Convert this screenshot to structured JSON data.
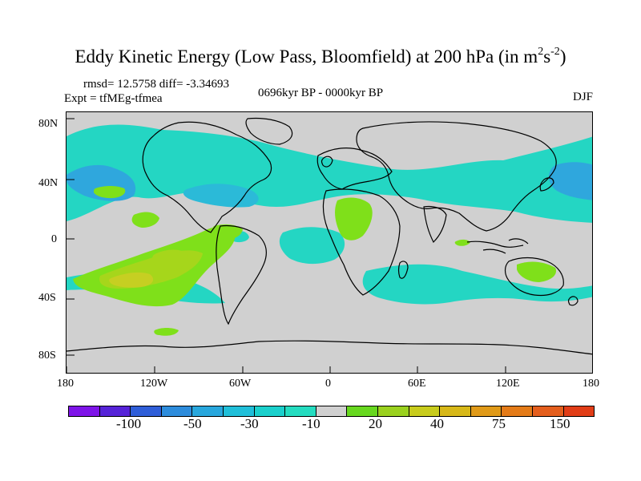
{
  "title": {
    "main": "Eddy Kinetic Energy (Low Pass, Bloomfield) at 200 hPa (in m",
    "sup1": "2",
    "mid": "s",
    "sup2": "-2",
    "end": ")"
  },
  "subtitle": {
    "stats": "rmsd= 12.5758 diff= -3.34693",
    "expt": "Expt = tfMEg-tfmea",
    "period": "0696kyr BP - 0000kyr BP",
    "season": "DJF"
  },
  "map": {
    "latitude_labels": [
      "80N",
      "40N",
      "0",
      "40S",
      "80S"
    ],
    "longitude_labels": [
      "180",
      "120W",
      "60W",
      "0",
      "60E",
      "120E",
      "180"
    ],
    "colors": {
      "background": "#d0d0d0",
      "coast": "#000000",
      "negative_deep": "#3fa3df",
      "negative_mid": "#27b7d6",
      "negative_light": "#22d6c4",
      "positive_light": "#7de019",
      "positive_mid": "#9ed61a",
      "positive_high": "#c5cf22"
    }
  },
  "colorbar": {
    "labels": [
      "-100",
      "-50",
      "-30",
      "-10",
      "20",
      "40",
      "75",
      "150"
    ],
    "colors": [
      "#7e14e8",
      "#5623d8",
      "#2f5ed8",
      "#2d8cdc",
      "#28a7dd",
      "#20bfd9",
      "#1bd0cc",
      "#24dcc0",
      "#d0d0d0",
      "#67d81f",
      "#9ad11e",
      "#c8cc1c",
      "#d7b818",
      "#e09a18",
      "#e47b18",
      "#e45e1d",
      "#e13d17"
    ]
  }
}
